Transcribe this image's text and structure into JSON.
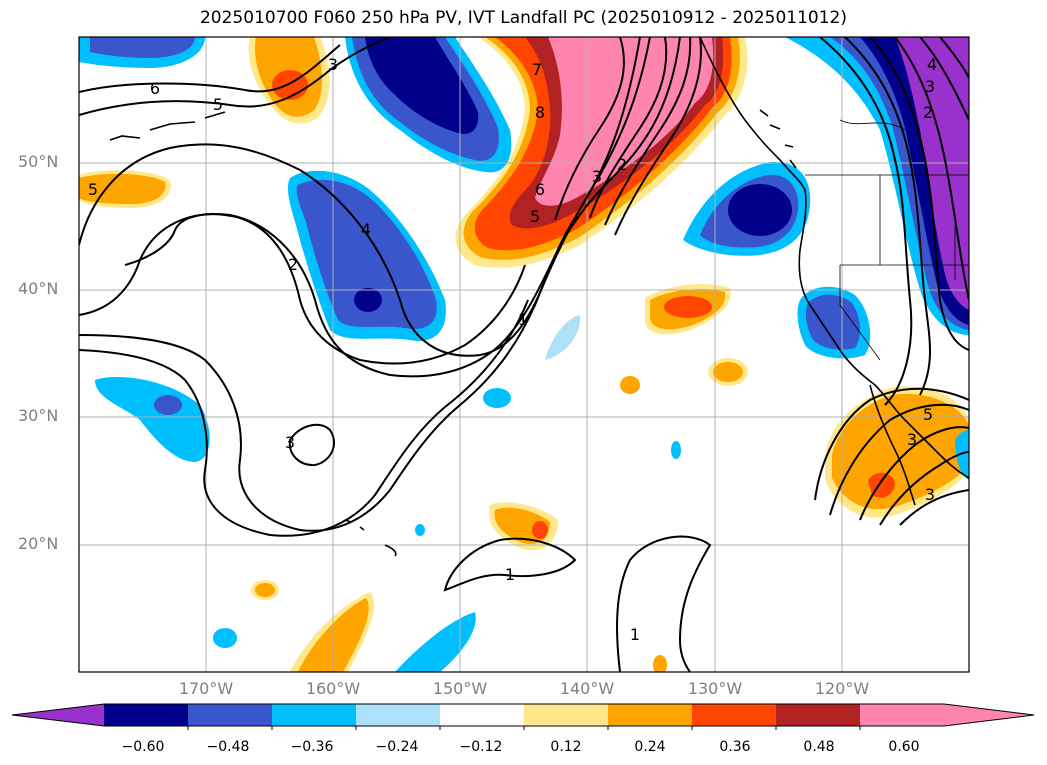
{
  "title": "2025010700 F060 250 hPa PV, IVT Landfall PC (2025010912 - 2025011012)",
  "map": {
    "region": "North Pacific / Western North America",
    "fill_field": "IVT landfall principal component",
    "contour_field": "250 hPa PV",
    "lat_labels": [
      "50°N",
      "40°N",
      "30°N",
      "20°N"
    ],
    "lon_labels": [
      "170°W",
      "160°W",
      "150°W",
      "140°W",
      "130°W",
      "120°W"
    ],
    "contour_labels": [
      "6",
      "5",
      "3",
      "2",
      "4",
      "7",
      "8",
      "6",
      "5",
      "3",
      "2",
      "1",
      "3",
      "1",
      "1",
      "5",
      "3",
      "5",
      "3",
      "4",
      "3",
      "2"
    ],
    "gridlines": true
  },
  "colorbar": {
    "orientation": "horizontal",
    "extend": "both",
    "ticks": [
      "−0.60",
      "−0.48",
      "−0.36",
      "−0.24",
      "−0.12",
      "0.12",
      "0.24",
      "0.36",
      "0.48",
      "0.60"
    ],
    "colors": [
      "#9932CC",
      "#00008B",
      "#3A56CC",
      "#00BFFF",
      "#ADE1FA",
      "#FFFFFF",
      "#FFE88A",
      "#FFA500",
      "#FF4500",
      "#B22222",
      "#FF85B0",
      "#FF85B0"
    ]
  }
}
